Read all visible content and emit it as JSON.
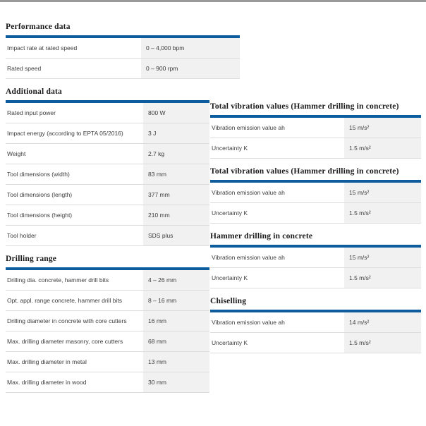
{
  "theme": {
    "accent_color": "#0d5c9e",
    "top_bar_color": "#9a9a9a",
    "value_cell_bg": "#f1f1f1"
  },
  "left_sections": [
    {
      "title": "Performance data",
      "rows": [
        {
          "label": "Impact rate at rated speed",
          "value": "0 – 4,000 bpm"
        },
        {
          "label": "Rated speed",
          "value": "0 – 900 rpm"
        }
      ]
    },
    {
      "title": "Additional data",
      "rows": [
        {
          "label": "Rated input power",
          "value": "800 W"
        },
        {
          "label": "Impact energy (according to EPTA 05/2016)",
          "value": "3 J"
        },
        {
          "label": "Weight",
          "value": "2.7 kg"
        },
        {
          "label": "Tool dimensions (width)",
          "value": "83 mm"
        },
        {
          "label": "Tool dimensions (length)",
          "value": "377 mm"
        },
        {
          "label": "Tool dimensions (height)",
          "value": "210 mm"
        },
        {
          "label": "Tool holder",
          "value": "SDS plus"
        }
      ]
    },
    {
      "title": "Drilling range",
      "rows": [
        {
          "label": "Drilling dia. concrete, hammer drill bits",
          "value": "4 – 26 mm"
        },
        {
          "label": "Opt. appl. range concrete, hammer drill bits",
          "value": "8 – 16 mm"
        },
        {
          "label": "Drilling diameter in concrete with core cutters",
          "value": "16 mm"
        },
        {
          "label": "Max. drilling diameter masonry, core cutters",
          "value": "68 mm"
        },
        {
          "label": "Max. drilling diameter in metal",
          "value": "13 mm"
        },
        {
          "label": "Max. drilling diameter in wood",
          "value": "30 mm"
        }
      ]
    }
  ],
  "right_sections": [
    {
      "title": "Total vibration values (Hammer drilling in concrete)",
      "rows": [
        {
          "label": "Vibration emission value ah",
          "value": "15 m/s²"
        },
        {
          "label": "Uncertainty K",
          "value": "1.5 m/s²"
        }
      ]
    },
    {
      "title": "Total vibration values (Hammer drilling in concrete)",
      "rows": [
        {
          "label": "Vibration emission value ah",
          "value": "15 m/s²"
        },
        {
          "label": "Uncertainty K",
          "value": "1.5 m/s²"
        }
      ]
    },
    {
      "title": "Hammer drilling in concrete",
      "rows": [
        {
          "label": "Vibration emission value ah",
          "value": "15 m/s²"
        },
        {
          "label": "Uncertainty K",
          "value": "1.5 m/s²"
        }
      ]
    },
    {
      "title": "Chiselling",
      "rows": [
        {
          "label": "Vibration emission value ah",
          "value": "14 m/s²"
        },
        {
          "label": "Uncertainty K",
          "value": "1.5 m/s²"
        }
      ]
    }
  ]
}
